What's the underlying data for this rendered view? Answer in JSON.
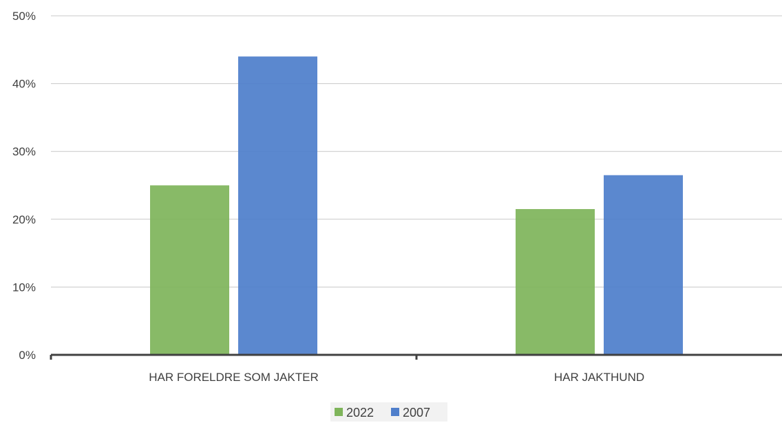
{
  "chart_data": {
    "type": "bar",
    "categories": [
      "HAR FORELDRE SOM JAKTER",
      "HAR JAKTHUND"
    ],
    "series": [
      {
        "name": "2022",
        "values": [
          25,
          21.5
        ],
        "color": "#7fb55b"
      },
      {
        "name": "2007",
        "values": [
          44,
          26.5
        ],
        "color": "#4f7fcb"
      }
    ],
    "y_ticks": [
      "0%",
      "10%",
      "20%",
      "30%",
      "40%",
      "50%"
    ],
    "ylim": [
      0,
      50
    ],
    "grid": true,
    "legend_position": "bottom",
    "title": "",
    "xlabel": "",
    "ylabel": ""
  }
}
